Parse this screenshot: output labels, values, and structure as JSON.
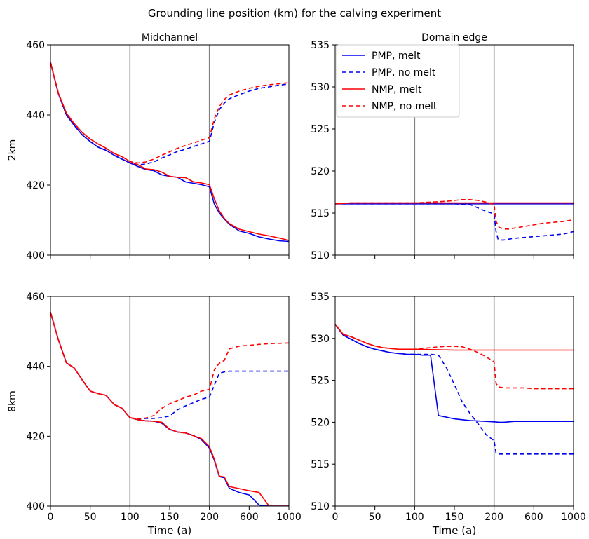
{
  "figure": {
    "title": "Grounding line position (km) for the calving experiment"
  },
  "colors": {
    "pmp": "#0000ee",
    "nmp": "#ff0000",
    "vline": "#808080",
    "axis": "#000000"
  },
  "legend": {
    "placement": "top-left of Domain edge 2km panel",
    "entries": [
      {
        "label": "PMP, melt",
        "color": "#0000ee",
        "style": "solid"
      },
      {
        "label": "PMP, no melt",
        "color": "#0000ee",
        "style": "dashed"
      },
      {
        "label": "NMP, melt",
        "color": "#ff0000",
        "style": "solid"
      },
      {
        "label": "NMP, no melt",
        "color": "#ff0000",
        "style": "dashed"
      }
    ]
  },
  "chart_data": [
    {
      "type": "line",
      "title": "Midchannel",
      "ylabel": "2km",
      "xlabel": "",
      "xticks": [
        "0",
        "50",
        "100",
        "150",
        "200",
        "600",
        "1000"
      ],
      "xtick_values": [
        0,
        50,
        100,
        150,
        200,
        600,
        1000
      ],
      "x_axis_note": "piecewise axis: 0-200 linear, 200-1000 compressed",
      "ylim": [
        400,
        460
      ],
      "yticks": [
        400,
        420,
        440,
        460
      ],
      "vlines": [
        100,
        200
      ],
      "series": [
        {
          "key": "pmp_melt",
          "x": [
            0,
            10,
            20,
            30,
            40,
            50,
            60,
            70,
            80,
            90,
            100,
            110,
            120,
            130,
            140,
            150,
            160,
            170,
            180,
            190,
            200,
            250,
            300,
            350,
            400,
            500,
            600,
            700,
            800,
            900,
            1000
          ],
          "y": [
            455,
            446,
            440,
            437,
            434.3,
            432.4,
            430.8,
            429.9,
            428.5,
            427.4,
            426.3,
            425.3,
            424.4,
            424.1,
            422.9,
            422.5,
            422.2,
            420.9,
            420.5,
            420.1,
            419.5,
            414.5,
            412.0,
            410.3,
            408.8,
            406.9,
            406.2,
            405.2,
            404.6,
            404.1,
            403.9
          ]
        },
        {
          "key": "pmp_nomelt",
          "x": [
            0,
            10,
            20,
            30,
            40,
            50,
            60,
            70,
            80,
            90,
            100,
            110,
            120,
            130,
            140,
            150,
            160,
            170,
            180,
            190,
            200,
            250,
            300,
            350,
            400,
            500,
            600,
            700,
            800,
            900,
            1000
          ],
          "y": [
            455,
            446,
            440,
            437,
            434.3,
            432.4,
            430.8,
            429.9,
            428.5,
            427.4,
            426.3,
            425.8,
            426.0,
            426.6,
            427.7,
            428.6,
            429.6,
            430.2,
            431.0,
            431.7,
            432.5,
            438.0,
            441.5,
            443.4,
            444.6,
            445.8,
            446.8,
            447.6,
            448.0,
            448.5,
            448.8
          ]
        },
        {
          "key": "nmp_melt",
          "x": [
            0,
            10,
            20,
            30,
            40,
            50,
            60,
            70,
            80,
            90,
            100,
            110,
            120,
            130,
            140,
            150,
            160,
            170,
            180,
            190,
            200,
            250,
            300,
            350,
            400,
            500,
            600,
            700,
            800,
            900,
            1000
          ],
          "y": [
            455,
            446.2,
            440.5,
            437.5,
            435.0,
            433.1,
            431.7,
            430.5,
            429.0,
            428.1,
            426.7,
            425.8,
            424.6,
            424.4,
            423.7,
            422.5,
            422.2,
            422.1,
            420.9,
            420.6,
            420.1,
            416.0,
            412.6,
            410.5,
            409.0,
            407.4,
            406.7,
            406.0,
            405.5,
            404.9,
            404.2
          ]
        },
        {
          "key": "nmp_nomelt",
          "x": [
            0,
            10,
            20,
            30,
            40,
            50,
            60,
            70,
            80,
            90,
            100,
            110,
            120,
            130,
            140,
            150,
            160,
            170,
            180,
            190,
            200,
            250,
            300,
            350,
            400,
            500,
            600,
            700,
            800,
            900,
            1000
          ],
          "y": [
            455,
            446.2,
            440.5,
            437.5,
            435.0,
            433.1,
            431.7,
            430.5,
            429.0,
            428.1,
            426.7,
            426.3,
            426.6,
            427.4,
            428.5,
            429.5,
            430.5,
            431.3,
            432.0,
            432.8,
            433.5,
            439.0,
            442.4,
            444.4,
            445.7,
            446.8,
            447.6,
            448.2,
            448.6,
            448.9,
            449.2
          ]
        }
      ]
    },
    {
      "type": "line",
      "title": "Domain edge",
      "ylabel": "",
      "xlabel": "",
      "xticks": [
        "0",
        "50",
        "100",
        "150",
        "200",
        "600",
        "1000"
      ],
      "xtick_values": [
        0,
        50,
        100,
        150,
        200,
        600,
        1000
      ],
      "ylim": [
        510,
        535
      ],
      "yticks": [
        510,
        515,
        520,
        525,
        530,
        535
      ],
      "vlines": [
        100,
        200
      ],
      "series": [
        {
          "key": "pmp_melt",
          "x": [
            0,
            20,
            50,
            100,
            150,
            200,
            300,
            400,
            600,
            800,
            1000
          ],
          "y": [
            516.1,
            516.1,
            516.1,
            516.1,
            516.1,
            516.1,
            516.1,
            516.1,
            516.1,
            516.1,
            516.1
          ]
        },
        {
          "key": "pmp_nomelt",
          "x": [
            0,
            20,
            50,
            100,
            150,
            170,
            180,
            190,
            200,
            220,
            240,
            260,
            300,
            350,
            400,
            500,
            600,
            700,
            800,
            900,
            1000
          ],
          "y": [
            516.1,
            516.1,
            516.1,
            516.1,
            516.1,
            516.0,
            515.6,
            515.2,
            514.9,
            512.8,
            511.9,
            511.8,
            511.8,
            511.9,
            512.0,
            512.1,
            512.2,
            512.3,
            512.4,
            512.5,
            512.8
          ]
        },
        {
          "key": "nmp_melt",
          "x": [
            0,
            20,
            50,
            100,
            150,
            200,
            300,
            400,
            600,
            800,
            1000
          ],
          "y": [
            516.1,
            516.2,
            516.2,
            516.2,
            516.2,
            516.2,
            516.2,
            516.2,
            516.2,
            516.2,
            516.2
          ]
        },
        {
          "key": "nmp_nomelt",
          "x": [
            0,
            20,
            50,
            100,
            120,
            140,
            160,
            170,
            180,
            190,
            200,
            220,
            250,
            300,
            350,
            400,
            500,
            600,
            700,
            800,
            900,
            1000
          ],
          "y": [
            516.1,
            516.2,
            516.2,
            516.2,
            516.3,
            516.4,
            516.6,
            516.6,
            516.5,
            516.3,
            516.0,
            514.0,
            513.3,
            513.1,
            513.1,
            513.2,
            513.4,
            513.6,
            513.8,
            513.9,
            514.0,
            514.2
          ]
        }
      ]
    },
    {
      "type": "line",
      "title": "",
      "ylabel": "8km",
      "xlabel": "Time (a)",
      "xticks": [
        "0",
        "50",
        "100",
        "150",
        "200",
        "600",
        "1000"
      ],
      "xtick_values": [
        0,
        50,
        100,
        150,
        200,
        600,
        1000
      ],
      "ylim": [
        400,
        460
      ],
      "yticks": [
        400,
        420,
        440,
        460
      ],
      "vlines": [
        100,
        200
      ],
      "series": [
        {
          "key": "pmp_melt",
          "x": [
            0,
            10,
            20,
            30,
            40,
            50,
            60,
            70,
            80,
            90,
            100,
            110,
            120,
            130,
            140,
            150,
            160,
            170,
            180,
            190,
            200,
            250,
            300,
            350,
            400,
            500,
            600,
            700,
            800,
            900,
            1000
          ],
          "y": [
            455.5,
            447.6,
            441.0,
            439.5,
            436.1,
            432.9,
            432.2,
            431.7,
            429.1,
            428.0,
            425.3,
            424.7,
            424.4,
            424.3,
            423.7,
            421.9,
            421.2,
            420.9,
            420.2,
            419.0,
            416.6,
            413.0,
            408.4,
            408.1,
            405.1,
            403.9,
            403.2,
            400.3,
            400.0,
            400.0,
            400.0
          ]
        },
        {
          "key": "pmp_nomelt",
          "x": [
            0,
            10,
            20,
            30,
            40,
            50,
            60,
            70,
            80,
            90,
            100,
            110,
            120,
            130,
            140,
            150,
            160,
            170,
            180,
            190,
            200,
            250,
            300,
            350,
            400,
            500,
            600,
            700,
            800,
            900,
            1000
          ],
          "y": [
            455.5,
            447.6,
            441.0,
            439.5,
            436.1,
            432.9,
            432.2,
            431.7,
            429.1,
            428.0,
            425.3,
            424.9,
            425.1,
            425.1,
            425.3,
            425.8,
            427.6,
            428.7,
            429.6,
            430.6,
            431.2,
            434.7,
            438.0,
            438.4,
            438.6,
            438.6,
            438.6,
            438.6,
            438.6,
            438.6,
            438.6
          ]
        },
        {
          "key": "nmp_melt",
          "x": [
            0,
            10,
            20,
            30,
            40,
            50,
            60,
            70,
            80,
            90,
            100,
            110,
            120,
            130,
            140,
            150,
            160,
            170,
            180,
            190,
            200,
            250,
            300,
            350,
            400,
            500,
            600,
            700,
            800,
            900,
            1000
          ],
          "y": [
            455.5,
            447.6,
            441.0,
            439.5,
            436.1,
            432.9,
            432.2,
            431.7,
            429.1,
            428.0,
            425.3,
            424.7,
            424.4,
            424.3,
            424.0,
            422.0,
            421.2,
            420.9,
            420.1,
            419.3,
            417.0,
            413.3,
            408.6,
            408.3,
            405.6,
            405.0,
            404.4,
            403.9,
            400.0,
            400.0,
            400.0
          ]
        },
        {
          "key": "nmp_nomelt",
          "x": [
            0,
            10,
            20,
            30,
            40,
            50,
            60,
            70,
            80,
            90,
            100,
            110,
            120,
            130,
            140,
            150,
            160,
            170,
            180,
            190,
            200,
            250,
            300,
            350,
            400,
            500,
            600,
            700,
            800,
            900,
            1000
          ],
          "y": [
            455.5,
            447.6,
            441.0,
            439.5,
            436.1,
            432.9,
            432.2,
            431.7,
            429.1,
            428.0,
            425.3,
            425.0,
            425.2,
            425.9,
            428.0,
            429.3,
            430.2,
            431.2,
            431.8,
            432.9,
            433.4,
            439.1,
            440.9,
            441.7,
            445.0,
            445.8,
            446.0,
            446.3,
            446.5,
            446.6,
            446.7
          ]
        }
      ]
    },
    {
      "type": "line",
      "title": "",
      "ylabel": "",
      "xlabel": "Time (a)",
      "xticks": [
        "0",
        "50",
        "100",
        "150",
        "200",
        "600",
        "1000"
      ],
      "xtick_values": [
        0,
        50,
        100,
        150,
        200,
        600,
        1000
      ],
      "ylim": [
        510,
        535
      ],
      "yticks": [
        510,
        515,
        520,
        525,
        530,
        535
      ],
      "vlines": [
        100,
        200
      ],
      "series": [
        {
          "key": "pmp_melt",
          "x": [
            0,
            10,
            20,
            30,
            40,
            50,
            60,
            70,
            80,
            90,
            100,
            110,
            120,
            130,
            140,
            150,
            160,
            170,
            180,
            190,
            200,
            250,
            300,
            400,
            500,
            600,
            700,
            800,
            900,
            1000
          ],
          "y": [
            531.7,
            530.4,
            529.9,
            529.4,
            529.0,
            528.7,
            528.5,
            528.3,
            528.2,
            528.1,
            528.1,
            528.0,
            528.0,
            520.8,
            520.6,
            520.4,
            520.3,
            520.2,
            520.15,
            520.1,
            520.05,
            520.0,
            520.0,
            520.1,
            520.1,
            520.1,
            520.1,
            520.1,
            520.1,
            520.1
          ]
        },
        {
          "key": "pmp_nomelt",
          "x": [
            0,
            10,
            20,
            30,
            40,
            50,
            60,
            70,
            80,
            90,
            100,
            110,
            120,
            130,
            140,
            150,
            160,
            170,
            180,
            190,
            200,
            220,
            250,
            300,
            400,
            500,
            600,
            700,
            800,
            900,
            1000
          ],
          "y": [
            531.7,
            530.4,
            529.9,
            529.4,
            529.0,
            528.7,
            528.5,
            528.3,
            528.2,
            528.1,
            528.1,
            528.1,
            528.1,
            528.0,
            526.5,
            524.5,
            522.4,
            521.0,
            519.8,
            518.5,
            517.8,
            516.3,
            516.2,
            516.2,
            516.2,
            516.2,
            516.2,
            516.2,
            516.2,
            516.2,
            516.2
          ]
        },
        {
          "key": "nmp_melt",
          "x": [
            0,
            10,
            20,
            30,
            40,
            50,
            60,
            70,
            80,
            90,
            100,
            150,
            200,
            300,
            400,
            600,
            800,
            1000
          ],
          "y": [
            531.7,
            530.5,
            530.2,
            529.8,
            529.4,
            529.1,
            528.9,
            528.8,
            528.7,
            528.7,
            528.7,
            528.6,
            528.6,
            528.6,
            528.6,
            528.6,
            528.6,
            528.6
          ]
        },
        {
          "key": "nmp_nomelt",
          "x": [
            0,
            10,
            20,
            30,
            40,
            50,
            60,
            70,
            80,
            90,
            100,
            110,
            120,
            130,
            140,
            150,
            160,
            170,
            180,
            190,
            200,
            220,
            250,
            300,
            400,
            500,
            600,
            700,
            800,
            900,
            1000
          ],
          "y": [
            531.7,
            530.5,
            530.2,
            529.8,
            529.4,
            529.1,
            528.9,
            528.8,
            528.7,
            528.7,
            528.7,
            528.8,
            528.9,
            529.0,
            529.05,
            529.05,
            529.0,
            528.7,
            528.3,
            527.8,
            527.2,
            524.6,
            524.2,
            524.1,
            524.1,
            524.1,
            524.0,
            524.0,
            524.0,
            524.0,
            524.0
          ]
        }
      ]
    }
  ]
}
